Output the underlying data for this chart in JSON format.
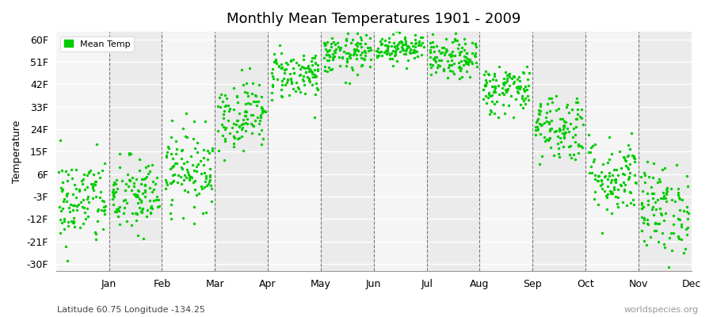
{
  "title": "Monthly Mean Temperatures 1901 - 2009",
  "ylabel": "Temperature",
  "ytick_labels": [
    "-30F",
    "-21F",
    "-12F",
    "-3F",
    "6F",
    "15F",
    "24F",
    "33F",
    "42F",
    "51F",
    "60F"
  ],
  "ytick_values": [
    -30,
    -21,
    -12,
    -3,
    6,
    15,
    24,
    33,
    42,
    51,
    60
  ],
  "ylim": [
    -33,
    63
  ],
  "month_labels": [
    "Jan",
    "Feb",
    "Mar",
    "Apr",
    "May",
    "Jun",
    "Jul",
    "Aug",
    "Sep",
    "Oct",
    "Nov",
    "Dec"
  ],
  "subtitle": "Latitude 60.75 Longitude -134.25",
  "watermark": "worldspecies.org",
  "dot_color": "#00cc00",
  "background_color": "#ffffff",
  "stripe_color_light": "#f5f5f5",
  "stripe_color_dark": "#ebebeb",
  "legend_label": "Mean Temp",
  "monthly_means": [
    -5,
    -3,
    8,
    30,
    46,
    54,
    57,
    52,
    40,
    25,
    5,
    -8
  ],
  "monthly_stds": [
    9,
    8,
    8,
    7,
    5,
    4,
    3,
    4,
    5,
    7,
    8,
    9
  ],
  "n_years": 109,
  "seed": 42,
  "dot_size": 6,
  "title_fontsize": 13,
  "axis_fontsize": 9,
  "ylabel_fontsize": 9
}
